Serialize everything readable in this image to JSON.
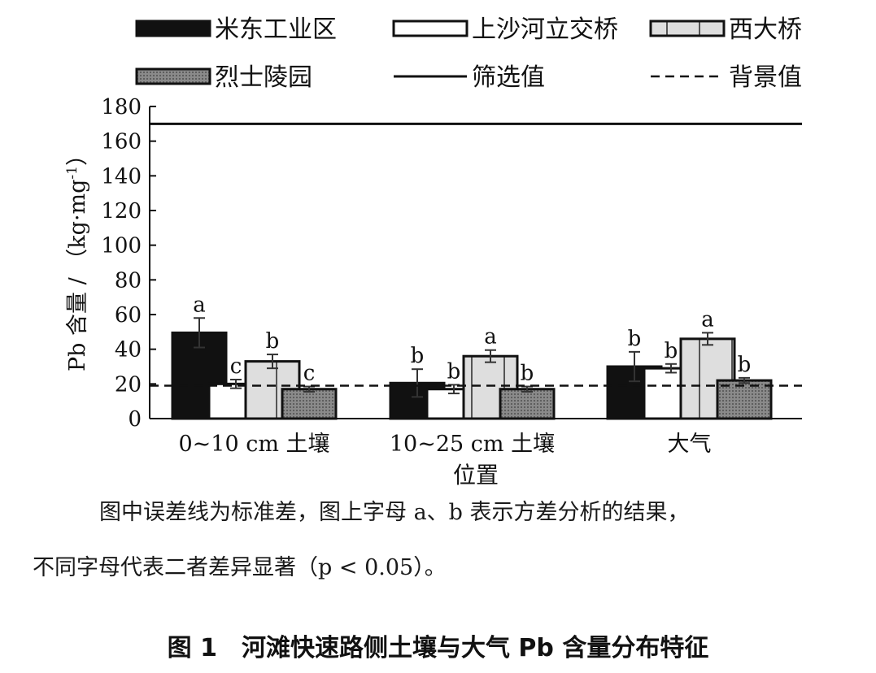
{
  "chart_data": {
    "type": "bar",
    "title": "",
    "xlabel": "位置",
    "ylabel": "Pb 含量 / （kg·mg",
    "ylabel_superscript": "-1",
    "ylabel_close": "）",
    "ylim": [
      0,
      180
    ],
    "yticks": [
      "0",
      "20",
      "40",
      "60",
      "80",
      "100",
      "120",
      "140",
      "160",
      "180"
    ],
    "grid": false,
    "legend_position": "top",
    "categories": [
      "0~10 cm 土壤",
      "10~25 cm 土壤",
      "大气"
    ],
    "series": [
      {
        "name": "米东工业区",
        "values": [
          49.5,
          20.5,
          30
        ],
        "errors": [
          8.5,
          8,
          8.5
        ],
        "letters": [
          "a",
          "b",
          "b"
        ],
        "fill": "#111111",
        "pattern": "solid"
      },
      {
        "name": "上沙河立交桥",
        "values": [
          20,
          17,
          29
        ],
        "errors": [
          2.5,
          2.5,
          2.5
        ],
        "letters": [
          "c",
          "b",
          "b"
        ],
        "fill": "#ffffff",
        "pattern": "hollow"
      },
      {
        "name": "西大桥",
        "values": [
          33,
          36,
          46
        ],
        "errors": [
          4,
          3.5,
          3.5
        ],
        "letters": [
          "b",
          "a",
          "a"
        ],
        "fill": "#dedede",
        "pattern": "vertical-lines"
      },
      {
        "name": "烈士陵园",
        "values": [
          17,
          17,
          22
        ],
        "errors": [
          1.5,
          1.5,
          1.5
        ],
        "letters": [
          "c",
          "b",
          "b"
        ],
        "fill": "#808080",
        "pattern": "dots"
      }
    ],
    "reference_lines": [
      {
        "name": "筛选值",
        "value": 170,
        "style": "solid"
      },
      {
        "name": "背景值",
        "value": 19,
        "style": "dashed"
      }
    ]
  },
  "note": {
    "line1": "图中误差线为标准差，图上字母 a、b 表示方差分析的结果，",
    "line2": "不同字母代表二者差异显著（p < 0.05）。"
  },
  "caption": "图 1　河滩快速路侧土壤与大气 Pb 含量分布特征",
  "colors": {
    "ink": "#111111",
    "light_gray": "#dedede",
    "dark_gray": "#808080"
  }
}
